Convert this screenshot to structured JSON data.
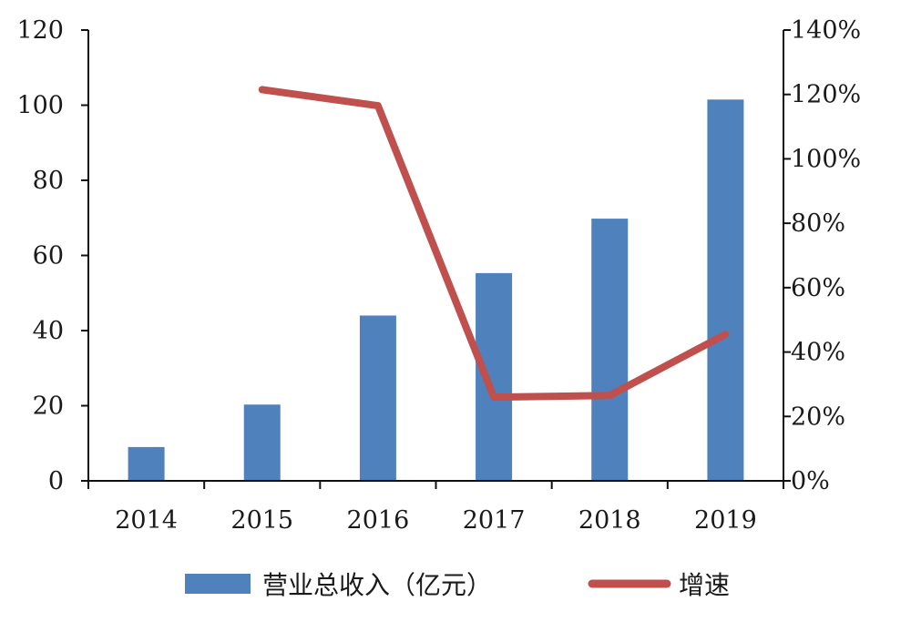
{
  "chart_data": {
    "type": "bar",
    "categories": [
      "2014",
      "2015",
      "2016",
      "2017",
      "2018",
      "2019"
    ],
    "series": [
      {
        "name": "营业总收入（亿元）",
        "type": "bar",
        "axis": "left",
        "color": "#4f81bd",
        "values": [
          9,
          20.3,
          44,
          55.3,
          69.8,
          101.5
        ]
      },
      {
        "name": "增速",
        "type": "line",
        "axis": "right",
        "color": "#c0504d",
        "values": [
          null,
          121.5,
          116.5,
          26.0,
          26.5,
          45.5
        ]
      }
    ],
    "y_left": {
      "min": 0,
      "max": 120,
      "step": 20,
      "tick_labels": [
        "0",
        "20",
        "40",
        "60",
        "80",
        "100",
        "120"
      ]
    },
    "y_right": {
      "min": 0,
      "max": 140,
      "step": 20,
      "tick_labels": [
        "0%",
        "20%",
        "40%",
        "60%",
        "80%",
        "100%",
        "120%",
        "140%"
      ]
    },
    "grid": false,
    "legend_position": "bottom"
  }
}
